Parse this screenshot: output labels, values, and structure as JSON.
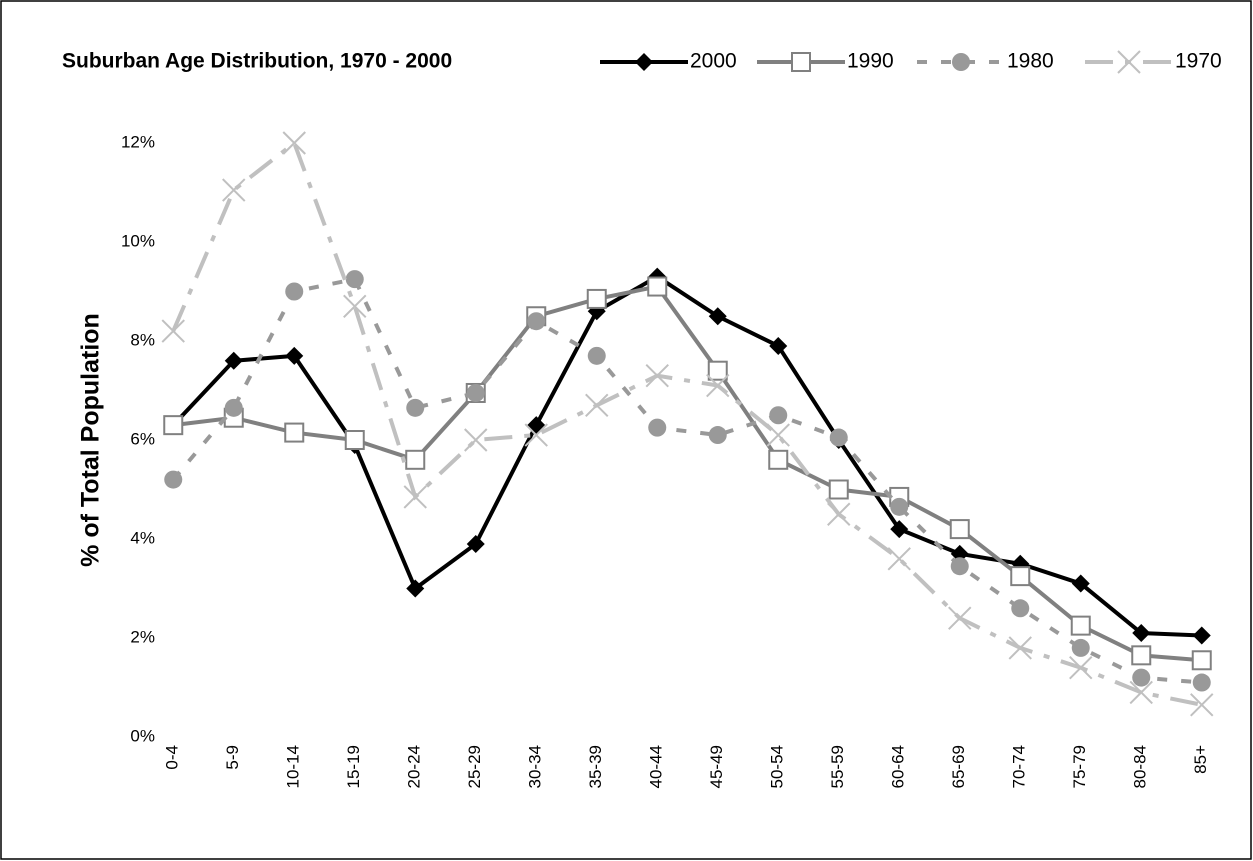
{
  "chart_data": {
    "type": "line",
    "title": "Suburban Age Distribution, 1970 - 2000",
    "y_label": "% of Total Population",
    "categories": [
      "0-4",
      "5-9",
      "10-14",
      "15-19",
      "20-24",
      "25-29",
      "30-34",
      "35-39",
      "40-44",
      "45-49",
      "50-54",
      "55-59",
      "60-64",
      "65-69",
      "70-74",
      "75-79",
      "80-84",
      "85+"
    ],
    "ylim": [
      0,
      12
    ],
    "yticks": [
      {
        "value": 0,
        "label": "0%"
      },
      {
        "value": 2,
        "label": "2%"
      },
      {
        "value": 4,
        "label": "4%"
      },
      {
        "value": 6,
        "label": "6%"
      },
      {
        "value": 8,
        "label": "8%"
      },
      {
        "value": 10,
        "label": "10%"
      },
      {
        "value": 12,
        "label": "12%"
      }
    ],
    "grid": false,
    "legend": "top-right",
    "series": [
      {
        "name": "2000",
        "color": "#000000",
        "marker": "diamond",
        "dash": "solid",
        "values": [
          6.3,
          7.6,
          7.7,
          5.9,
          3.0,
          3.9,
          6.3,
          8.6,
          9.3,
          8.5,
          7.9,
          6.0,
          4.2,
          3.7,
          3.5,
          3.1,
          2.1,
          2.05
        ]
      },
      {
        "name": "1990",
        "color": "#808080",
        "marker": "square",
        "dash": "solid",
        "values": [
          6.3,
          6.45,
          6.15,
          6.0,
          5.6,
          6.95,
          8.5,
          8.85,
          9.1,
          7.4,
          5.6,
          5.0,
          4.85,
          4.2,
          3.25,
          2.25,
          1.65,
          1.55
        ]
      },
      {
        "name": "1980",
        "color": "#999999",
        "marker": "circle",
        "dash": "dash",
        "values": [
          5.2,
          6.65,
          9.0,
          9.25,
          6.65,
          6.95,
          8.4,
          7.7,
          6.25,
          6.1,
          6.5,
          6.05,
          4.65,
          3.45,
          2.6,
          1.8,
          1.2,
          1.1
        ]
      },
      {
        "name": "1970",
        "color": "#c0c0c0",
        "marker": "x",
        "dash": "dashdot",
        "values": [
          8.2,
          11.05,
          12.0,
          8.7,
          4.85,
          6.0,
          6.1,
          6.7,
          7.3,
          7.1,
          6.1,
          4.5,
          3.6,
          2.4,
          1.8,
          1.4,
          0.9,
          0.65
        ]
      }
    ]
  }
}
